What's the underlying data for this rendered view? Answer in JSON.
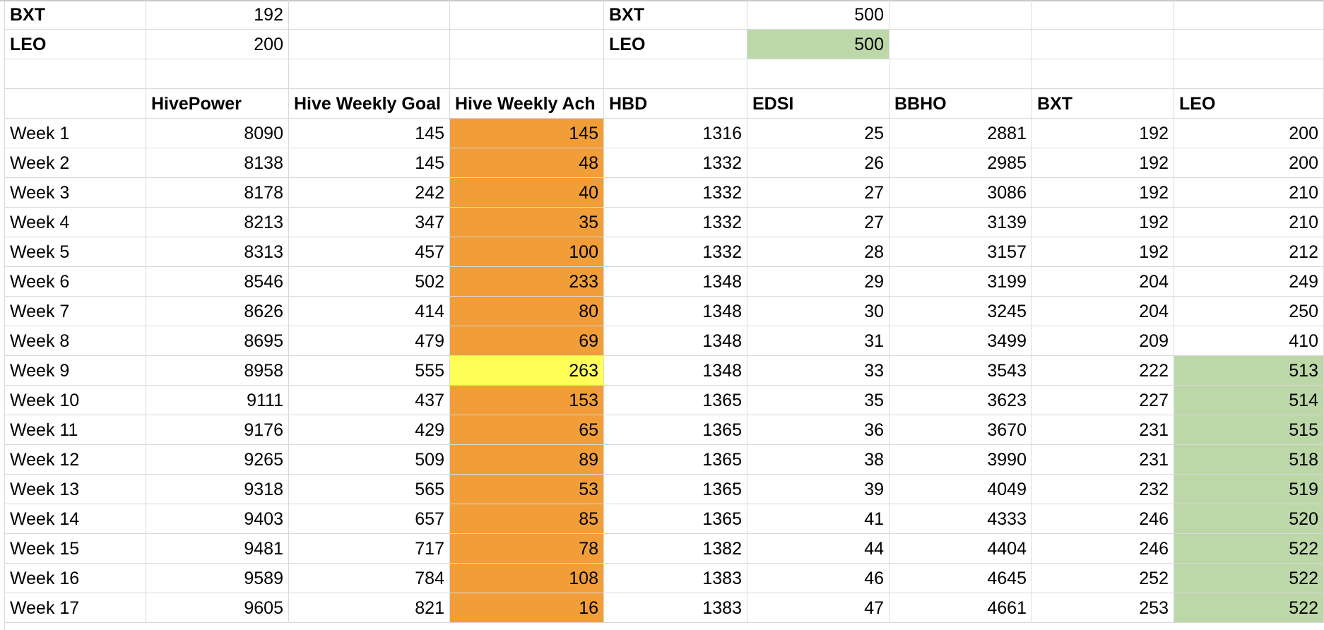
{
  "colors": {
    "orange_fill": "#f19e39",
    "yellow_fill": "#ffff57",
    "green_fill": "#bcd7a8",
    "grid": "#d9d9d9"
  },
  "top_left": [
    {
      "label": "BXT",
      "value": "192"
    },
    {
      "label": "LEO",
      "value": "200"
    }
  ],
  "top_right": [
    {
      "label": "BXT",
      "value": "500",
      "fill": ""
    },
    {
      "label": "LEO",
      "value": "500",
      "fill": "green"
    }
  ],
  "headers": [
    "",
    "HivePower",
    "Hive Weekly Goal",
    "Hive Weekly Ach",
    "HBD",
    "EDSI",
    "BBHO",
    "BXT",
    "LEO"
  ],
  "rows": [
    {
      "label": "Week 1",
      "hp": "8090",
      "goal": "145",
      "ach": "145",
      "ach_fill": "orange",
      "hbd": "1316",
      "edsi": "25",
      "bbho": "2881",
      "bxt": "192",
      "leo": "200",
      "leo_fill": ""
    },
    {
      "label": "Week 2",
      "hp": "8138",
      "goal": "145",
      "ach": "48",
      "ach_fill": "orange",
      "hbd": "1332",
      "edsi": "26",
      "bbho": "2985",
      "bxt": "192",
      "leo": "200",
      "leo_fill": ""
    },
    {
      "label": "Week 3",
      "hp": "8178",
      "goal": "242",
      "ach": "40",
      "ach_fill": "orange",
      "hbd": "1332",
      "edsi": "27",
      "bbho": "3086",
      "bxt": "192",
      "leo": "210",
      "leo_fill": ""
    },
    {
      "label": "Week 4",
      "hp": "8213",
      "goal": "347",
      "ach": "35",
      "ach_fill": "orange",
      "hbd": "1332",
      "edsi": "27",
      "bbho": "3139",
      "bxt": "192",
      "leo": "210",
      "leo_fill": ""
    },
    {
      "label": "Week 5",
      "hp": "8313",
      "goal": "457",
      "ach": "100",
      "ach_fill": "orange",
      "hbd": "1332",
      "edsi": "28",
      "bbho": "3157",
      "bxt": "192",
      "leo": "212",
      "leo_fill": ""
    },
    {
      "label": "Week 6",
      "hp": "8546",
      "goal": "502",
      "ach": "233",
      "ach_fill": "orange",
      "hbd": "1348",
      "edsi": "29",
      "bbho": "3199",
      "bxt": "204",
      "leo": "249",
      "leo_fill": ""
    },
    {
      "label": "Week 7",
      "hp": "8626",
      "goal": "414",
      "ach": "80",
      "ach_fill": "orange",
      "hbd": "1348",
      "edsi": "30",
      "bbho": "3245",
      "bxt": "204",
      "leo": "250",
      "leo_fill": ""
    },
    {
      "label": "Week 8",
      "hp": "8695",
      "goal": "479",
      "ach": "69",
      "ach_fill": "orange",
      "hbd": "1348",
      "edsi": "31",
      "bbho": "3499",
      "bxt": "209",
      "leo": "410",
      "leo_fill": ""
    },
    {
      "label": "Week 9",
      "hp": "8958",
      "goal": "555",
      "ach": "263",
      "ach_fill": "yellow",
      "hbd": "1348",
      "edsi": "33",
      "bbho": "3543",
      "bxt": "222",
      "leo": "513",
      "leo_fill": "green"
    },
    {
      "label": "Week 10",
      "hp": "9111",
      "goal": "437",
      "ach": "153",
      "ach_fill": "orange",
      "hbd": "1365",
      "edsi": "35",
      "bbho": "3623",
      "bxt": "227",
      "leo": "514",
      "leo_fill": "green"
    },
    {
      "label": "Week 11",
      "hp": "9176",
      "goal": "429",
      "ach": "65",
      "ach_fill": "orange",
      "hbd": "1365",
      "edsi": "36",
      "bbho": "3670",
      "bxt": "231",
      "leo": "515",
      "leo_fill": "green"
    },
    {
      "label": "Week 12",
      "hp": "9265",
      "goal": "509",
      "ach": "89",
      "ach_fill": "orange",
      "hbd": "1365",
      "edsi": "38",
      "bbho": "3990",
      "bxt": "231",
      "leo": "518",
      "leo_fill": "green"
    },
    {
      "label": "Week 13",
      "hp": "9318",
      "goal": "565",
      "ach": "53",
      "ach_fill": "orange",
      "hbd": "1365",
      "edsi": "39",
      "bbho": "4049",
      "bxt": "232",
      "leo": "519",
      "leo_fill": "green"
    },
    {
      "label": "Week 14",
      "hp": "9403",
      "goal": "657",
      "ach": "85",
      "ach_fill": "orange",
      "hbd": "1365",
      "edsi": "41",
      "bbho": "4333",
      "bxt": "246",
      "leo": "520",
      "leo_fill": "green"
    },
    {
      "label": "Week 15",
      "hp": "9481",
      "goal": "717",
      "ach": "78",
      "ach_fill": "orange",
      "hbd": "1382",
      "edsi": "44",
      "bbho": "4404",
      "bxt": "246",
      "leo": "522",
      "leo_fill": "green"
    },
    {
      "label": "Week 16",
      "hp": "9589",
      "goal": "784",
      "ach": "108",
      "ach_fill": "orange",
      "hbd": "1383",
      "edsi": "46",
      "bbho": "4645",
      "bxt": "252",
      "leo": "522",
      "leo_fill": "green"
    },
    {
      "label": "Week 17",
      "hp": "9605",
      "goal": "821",
      "ach": "16",
      "ach_fill": "orange",
      "hbd": "1383",
      "edsi": "47",
      "bbho": "4661",
      "bxt": "253",
      "leo": "522",
      "leo_fill": "green"
    }
  ]
}
